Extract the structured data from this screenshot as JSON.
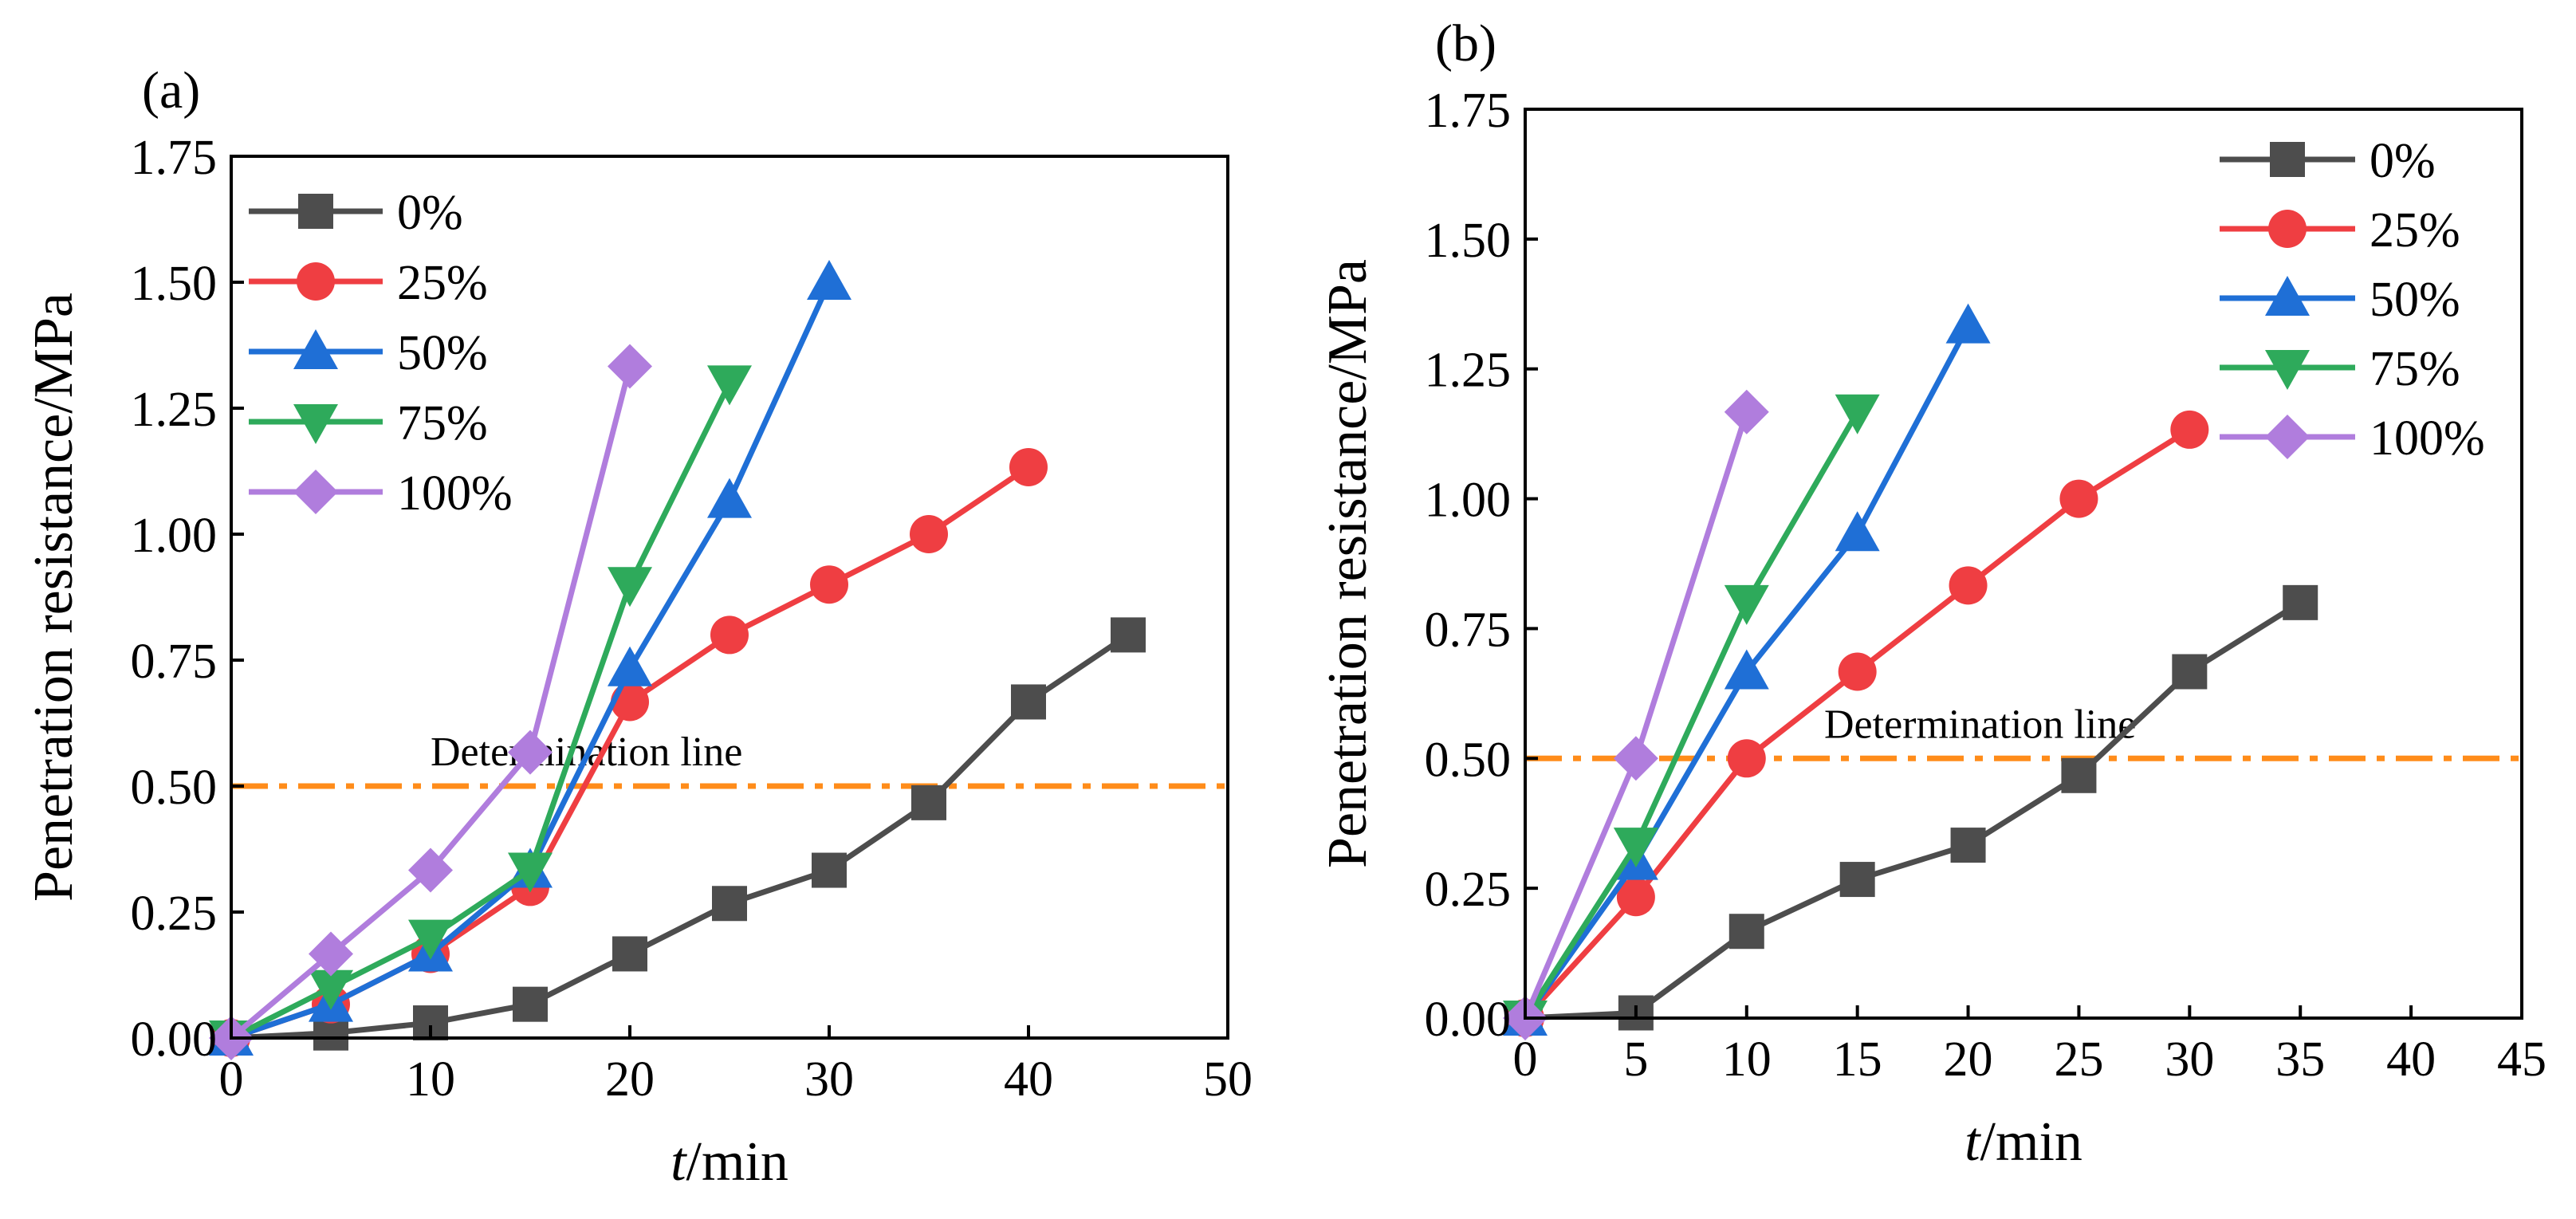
{
  "chart_data": [
    {
      "type": "line",
      "panel_label": "(a)",
      "xlabel_italic": "t",
      "xlabel_unit": "/min",
      "ylabel": "Penetration resistance/MPa",
      "xlim": [
        0,
        50
      ],
      "ylim": [
        0,
        1.75
      ],
      "xticks": [
        0,
        10,
        20,
        30,
        40,
        50
      ],
      "yticks": [
        0,
        0.25,
        0.5,
        0.75,
        1.0,
        1.25,
        1.5,
        1.75
      ],
      "ytick_labels": [
        "0.00",
        "0.25",
        "0.50",
        "0.75",
        "1.00",
        "1.25",
        "1.50",
        "1.75"
      ],
      "grid": false,
      "legend_position": "top-left",
      "reference_line": {
        "y": 0.5,
        "label": "Determination line",
        "label_x": 10
      },
      "series": [
        {
          "name": "0%",
          "color": "#4d4d4d",
          "marker": "square",
          "x": [
            0,
            5,
            10,
            15,
            20,
            25,
            30,
            35,
            40,
            45
          ],
          "y": [
            0,
            0.01,
            0.03,
            0.067,
            0.167,
            0.267,
            0.333,
            0.467,
            0.667,
            0.8
          ]
        },
        {
          "name": "25%",
          "color": "#ef3e42",
          "marker": "circle",
          "x": [
            0,
            5,
            10,
            15,
            20,
            25,
            30,
            35,
            40
          ],
          "y": [
            0,
            0.067,
            0.167,
            0.3,
            0.667,
            0.8,
            0.9,
            1.0,
            1.133
          ]
        },
        {
          "name": "50%",
          "color": "#1f6fd6",
          "marker": "triangle-up",
          "x": [
            0,
            5,
            10,
            15,
            20,
            25,
            30
          ],
          "y": [
            0,
            0.067,
            0.167,
            0.333,
            0.733,
            1.067,
            1.5
          ]
        },
        {
          "name": "75%",
          "color": "#2eaa5b",
          "marker": "triangle-down",
          "x": [
            0,
            5,
            10,
            15,
            20,
            25
          ],
          "y": [
            0,
            0.1,
            0.2,
            0.333,
            0.9,
            1.3
          ]
        },
        {
          "name": "100%",
          "color": "#b07ddd",
          "marker": "diamond",
          "x": [
            0,
            5,
            10,
            15,
            20
          ],
          "y": [
            0,
            0.167,
            0.333,
            0.567,
            1.333
          ]
        }
      ]
    },
    {
      "type": "line",
      "panel_label": "(b)",
      "xlabel_italic": "t",
      "xlabel_unit": "/min",
      "ylabel": "Penetration resistance/MPa",
      "xlim": [
        0,
        45
      ],
      "ylim": [
        0,
        1.75
      ],
      "xticks": [
        0,
        5,
        10,
        15,
        20,
        25,
        30,
        35,
        40,
        45
      ],
      "yticks": [
        0,
        0.25,
        0.5,
        0.75,
        1.0,
        1.25,
        1.5,
        1.75
      ],
      "ytick_labels": [
        "0.00",
        "0.25",
        "0.50",
        "0.75",
        "1.00",
        "1.25",
        "1.50",
        "1.75"
      ],
      "grid": false,
      "legend_position": "top-right",
      "reference_line": {
        "y": 0.5,
        "label": "Determination line",
        "label_x": 13.5
      },
      "series": [
        {
          "name": "0%",
          "color": "#4d4d4d",
          "marker": "square",
          "x": [
            0,
            5,
            10,
            15,
            20,
            25,
            30,
            35
          ],
          "y": [
            0,
            0.01,
            0.167,
            0.267,
            0.333,
            0.467,
            0.667,
            0.8
          ]
        },
        {
          "name": "25%",
          "color": "#ef3e42",
          "marker": "circle",
          "x": [
            0,
            5,
            10,
            15,
            20,
            25,
            30
          ],
          "y": [
            0,
            0.233,
            0.5,
            0.667,
            0.833,
            1.0,
            1.133
          ]
        },
        {
          "name": "50%",
          "color": "#1f6fd6",
          "marker": "triangle-up",
          "x": [
            0,
            5,
            10,
            15,
            20
          ],
          "y": [
            0,
            0.3,
            0.667,
            0.933,
            1.333
          ]
        },
        {
          "name": "75%",
          "color": "#2eaa5b",
          "marker": "triangle-down",
          "x": [
            0,
            5,
            10,
            15
          ],
          "y": [
            0,
            0.333,
            0.8,
            1.167
          ]
        },
        {
          "name": "100%",
          "color": "#b07ddd",
          "marker": "diamond",
          "x": [
            0,
            5,
            10
          ],
          "y": [
            0,
            0.5,
            1.167
          ]
        }
      ]
    }
  ],
  "colors": {
    "reference_line": "#ff8c1a",
    "axis": "#000000"
  }
}
